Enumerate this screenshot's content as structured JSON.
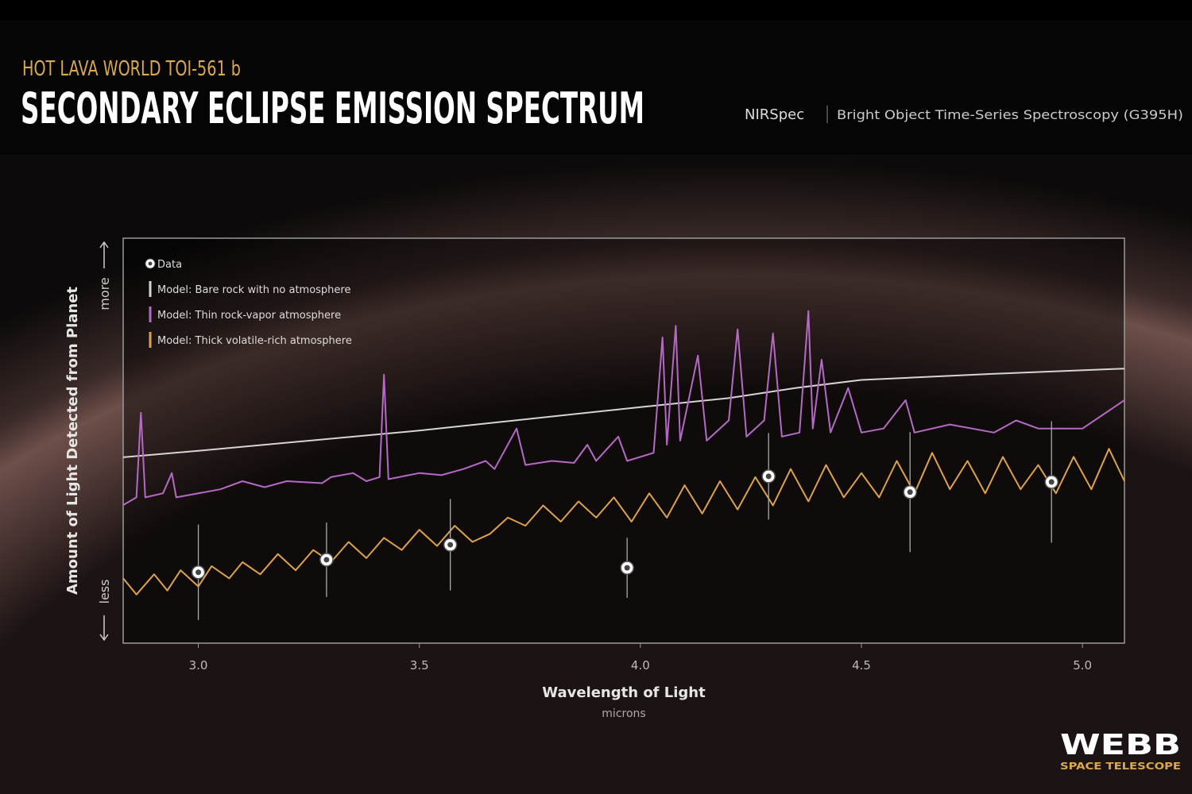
{
  "header": {
    "kicker": "HOT LAVA WORLD TOI-561 b",
    "title": "SECONDARY ECLIPSE EMISSION SPECTRUM",
    "instrument": "NIRSpec",
    "mode": "Bright Object Time-Series Spectroscopy (G395H)"
  },
  "logo": {
    "name": "WEBB",
    "subtitle": "SPACE TELESCOPE"
  },
  "chart_data": {
    "type": "line",
    "xlabel": "Wavelength of Light",
    "xunit": "microns",
    "ylabel": "Amount of Light Detected from Planet",
    "y_more": "more",
    "y_less": "less",
    "xlim": [
      2.83,
      5.095
    ],
    "ylim": [
      0,
      100
    ],
    "xticks": [
      {
        "value": 3,
        "label": "3.0"
      },
      3.5,
      {
        "value": 4,
        "label": "4.0"
      },
      4.5,
      {
        "value": 5,
        "label": "5.0"
      }
    ],
    "series": [
      {
        "name": "Model: Bare rock with no atmosphere",
        "color": "#d8d4d6",
        "x": [
          2.83,
          3.0,
          3.5,
          4.0,
          4.2,
          4.35,
          4.5,
          4.8,
          5.095
        ],
        "values": [
          45.9,
          47.5,
          52.5,
          58.3,
          60.5,
          63,
          65,
          66.5,
          67.8
        ]
      },
      {
        "name": "Model: Thin rock-vapor atmosphere",
        "color": "#b46ac4",
        "x": [
          2.83,
          2.86,
          2.87,
          2.88,
          2.92,
          2.94,
          2.95,
          3.05,
          3.1,
          3.15,
          3.2,
          3.28,
          3.3,
          3.35,
          3.38,
          3.41,
          3.42,
          3.43,
          3.5,
          3.55,
          3.6,
          3.65,
          3.67,
          3.72,
          3.74,
          3.8,
          3.85,
          3.88,
          3.9,
          3.95,
          3.97,
          4.03,
          4.05,
          4.06,
          4.08,
          4.09,
          4.13,
          4.15,
          4.2,
          4.22,
          4.24,
          4.28,
          4.3,
          4.32,
          4.36,
          4.38,
          4.39,
          4.41,
          4.43,
          4.47,
          4.5,
          4.55,
          4.6,
          4.62,
          4.7,
          4.8,
          4.85,
          4.9,
          5.0,
          5.095
        ],
        "values": [
          34.1,
          36,
          56.9,
          36,
          37,
          42,
          36,
          38,
          40,
          38.5,
          40,
          39.5,
          41,
          42,
          40,
          41,
          66.3,
          40.5,
          42,
          41.5,
          43,
          45,
          43,
          53,
          44,
          45,
          44.5,
          49,
          45,
          51,
          45,
          47,
          75.5,
          49,
          78.4,
          50,
          71,
          50,
          55,
          77.5,
          51,
          55,
          76.5,
          51,
          52,
          82,
          53,
          70,
          52,
          63,
          52,
          53,
          60,
          52,
          54,
          52,
          55,
          53,
          53,
          60
        ]
      },
      {
        "name": "Model: Thick volatile-rich atmosphere",
        "color": "#dca24c",
        "x": [
          2.83,
          2.86,
          2.9,
          2.93,
          2.96,
          3.0,
          3.03,
          3.07,
          3.1,
          3.14,
          3.18,
          3.22,
          3.26,
          3.3,
          3.34,
          3.38,
          3.42,
          3.46,
          3.5,
          3.54,
          3.58,
          3.62,
          3.66,
          3.7,
          3.74,
          3.78,
          3.82,
          3.86,
          3.9,
          3.94,
          3.98,
          4.02,
          4.06,
          4.1,
          4.14,
          4.18,
          4.22,
          4.26,
          4.3,
          4.34,
          4.38,
          4.42,
          4.46,
          4.5,
          4.54,
          4.58,
          4.62,
          4.66,
          4.7,
          4.74,
          4.78,
          4.82,
          4.86,
          4.9,
          4.94,
          4.98,
          5.02,
          5.06,
          5.095
        ],
        "values": [
          16,
          12,
          17,
          13,
          18,
          14,
          19,
          16,
          20,
          17,
          22,
          18,
          23,
          20,
          25,
          21,
          26,
          23,
          28,
          24,
          29,
          25,
          27,
          31,
          29,
          34,
          30,
          35,
          31,
          36,
          30,
          37,
          31,
          39,
          32,
          40,
          33,
          41,
          34,
          43,
          35,
          44,
          36,
          42,
          36,
          45,
          37,
          47,
          38,
          45,
          37,
          46,
          38,
          44,
          37,
          46,
          38,
          48,
          40
        ]
      },
      {
        "name": "Data",
        "color": "#ffffff",
        "x": [
          3.0,
          3.29,
          3.57,
          3.97,
          4.29,
          4.61,
          4.93
        ],
        "values": [
          17.5,
          20.6,
          24.3,
          18.6,
          41.2,
          37.3,
          39.8
        ],
        "errors": [
          11.8,
          9.2,
          11.3,
          7.4,
          10.7,
          14.8,
          15
        ]
      }
    ]
  }
}
